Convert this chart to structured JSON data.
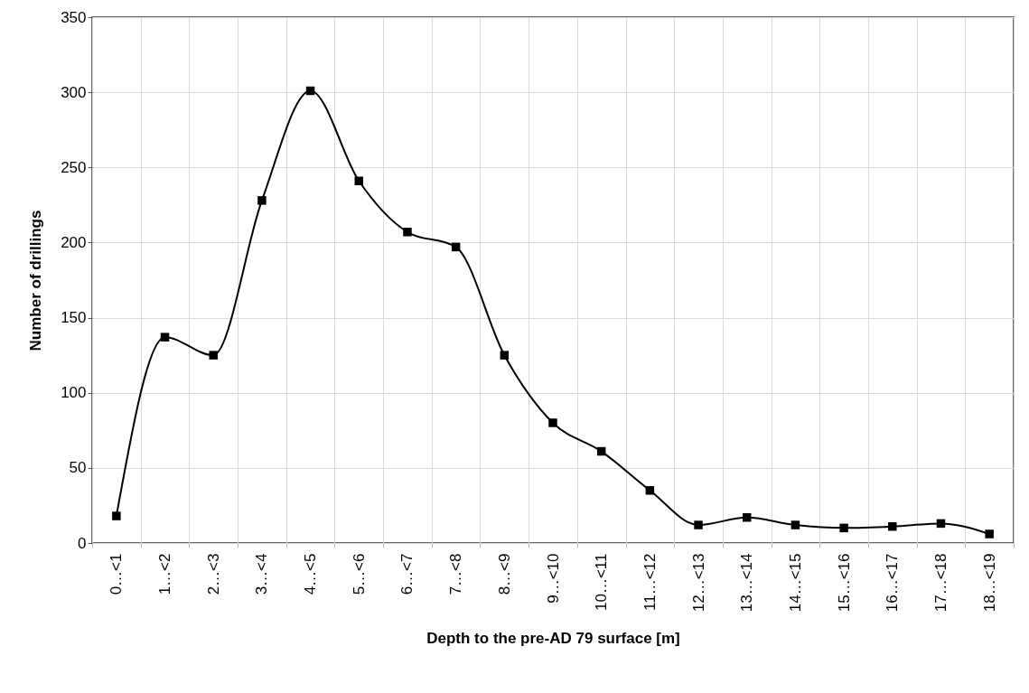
{
  "chart_data": {
    "type": "line",
    "xlabel": "Depth to the pre-AD 79 surface [m]",
    "ylabel": "Number of drillings",
    "categories": [
      "0…<1",
      "1…<2",
      "2…<3",
      "3…<4",
      "4…<5",
      "5…<6",
      "6…<7",
      "7…<8",
      "8…<9",
      "9…<10",
      "10…<11",
      "11…<12",
      "12…<13",
      "13…<14",
      "14…<15",
      "15…<16",
      "16…<17",
      "17…<18",
      "18…<19"
    ],
    "series": [
      {
        "color": "#000000",
        "values": [
          18,
          137,
          125,
          228,
          301,
          241,
          207,
          197,
          125,
          80,
          61,
          35,
          12,
          17,
          12,
          10,
          11,
          13,
          6
        ]
      }
    ],
    "ylim": [
      0,
      350
    ],
    "yticks": [
      0,
      50,
      100,
      150,
      200,
      250,
      300,
      350
    ],
    "grid": true,
    "marker": "square"
  }
}
